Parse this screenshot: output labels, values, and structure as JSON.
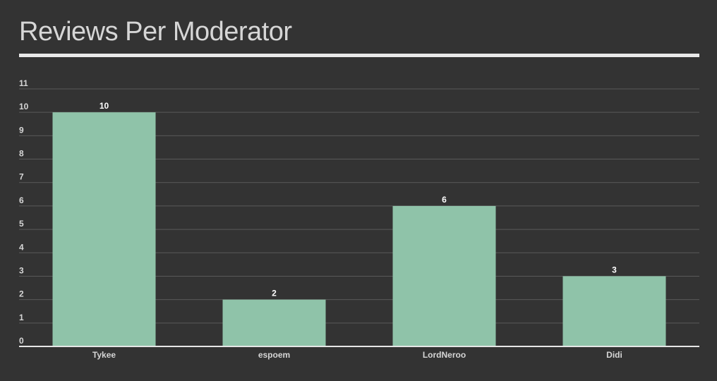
{
  "chart_data": {
    "type": "bar",
    "title": "Reviews Per Moderator",
    "categories": [
      "Tykee",
      "espoem",
      "LordNeroo",
      "Didi"
    ],
    "values": [
      10,
      2,
      6,
      3
    ],
    "xlabel": "",
    "ylabel": "",
    "ylim": [
      0,
      11
    ],
    "yticks": [
      0,
      1,
      2,
      3,
      4,
      5,
      6,
      7,
      8,
      9,
      10,
      11
    ],
    "grid": true,
    "legend": "none",
    "data_labels": true,
    "bar_color": "#8fc3a9",
    "background_color": "#333333",
    "text_color": "#d6d6d6"
  }
}
